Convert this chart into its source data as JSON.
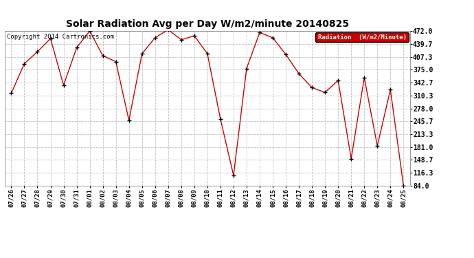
{
  "title": "Solar Radiation Avg per Day W/m2/minute 20140825",
  "copyright": "Copyright 2014 Cartronics.com",
  "legend_label": "Radiation  (W/m2/Minute)",
  "dates": [
    "07/26",
    "07/27",
    "07/28",
    "07/29",
    "07/30",
    "07/31",
    "08/01",
    "08/02",
    "08/03",
    "08/04",
    "08/05",
    "08/06",
    "08/07",
    "08/08",
    "08/09",
    "08/10",
    "08/11",
    "08/12",
    "08/13",
    "08/14",
    "08/15",
    "08/16",
    "08/17",
    "08/18",
    "08/19",
    "08/20",
    "08/21",
    "08/22",
    "08/23",
    "08/24",
    "08/25"
  ],
  "values": [
    316,
    390,
    420,
    453,
    336,
    430,
    472,
    410,
    395,
    248,
    415,
    455,
    475,
    450,
    460,
    415,
    251,
    110,
    378,
    468,
    455,
    413,
    365,
    330,
    318,
    348,
    152,
    355,
    184,
    325,
    84
  ],
  "ylim_min": 84.0,
  "ylim_max": 472.0,
  "yticks": [
    84.0,
    116.3,
    148.7,
    181.0,
    213.3,
    245.7,
    278.0,
    310.3,
    342.7,
    375.0,
    407.3,
    439.7,
    472.0
  ],
  "line_color": "#cc0000",
  "marker_color": "#000000",
  "bg_color": "#ffffff",
  "grid_color": "#c0c0c0",
  "title_fontsize": 10,
  "copyright_fontsize": 6.5,
  "legend_bg": "#cc0000",
  "legend_text_color": "#ffffff",
  "tick_fontsize": 6.5,
  "ytick_fontsize": 7
}
